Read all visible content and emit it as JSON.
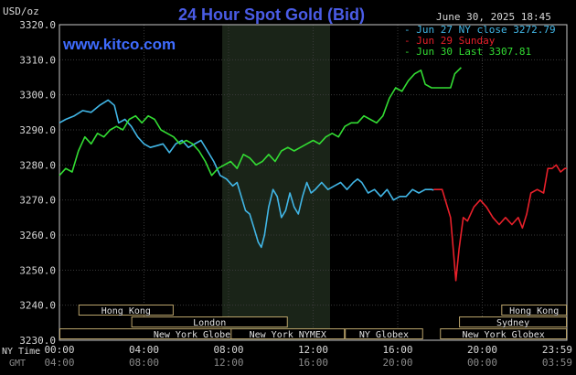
{
  "chart_data": {
    "type": "line",
    "title": "24 Hour Spot Gold (Bid)",
    "unit_label": "USD/oz",
    "timestamp": "June 30, 2025 18:45",
    "watermark": "www.kitco.com",
    "ylim": [
      3230,
      3320
    ],
    "y_ticks": [
      "3320.0",
      "3310.0",
      "3300.0",
      "3290.0",
      "3280.0",
      "3270.0",
      "3260.0",
      "3250.0",
      "3240.0",
      "3230.0"
    ],
    "x_range_hours": [
      0,
      24
    ],
    "x_ticks": [
      {
        "hour": 0,
        "ny": "00:00",
        "gmt": "04:00"
      },
      {
        "hour": 4,
        "ny": "04:00",
        "gmt": "08:00"
      },
      {
        "hour": 8,
        "ny": "08:00",
        "gmt": "12:00"
      },
      {
        "hour": 12,
        "ny": "12:00",
        "gmt": "16:00"
      },
      {
        "hour": 16,
        "ny": "16:00",
        "gmt": "20:00"
      },
      {
        "hour": 20,
        "ny": "20:00",
        "gmt": "00:00"
      },
      {
        "hour": 24,
        "ny": "23:59",
        "gmt": "03:59"
      }
    ],
    "x_axis_labels": {
      "ny": "NY Time",
      "gmt": "GMT"
    },
    "shaded_session_hours": [
      7.7,
      12.8
    ],
    "legend": [
      {
        "label": "Jun 27 NY close 3272.79",
        "color": "#41b6e6"
      },
      {
        "label": "Jun 29 Sunday",
        "color": "#e8202a"
      },
      {
        "label": "Jun 30 Last 3307.81",
        "color": "#33dd33"
      }
    ],
    "sessions": [
      {
        "label": "Hong Kong",
        "start": 0.9,
        "end": 5.4,
        "row": 0
      },
      {
        "label": "London",
        "start": 3.4,
        "end": 10.8,
        "row": 1
      },
      {
        "label": "New York Globex",
        "start": 0,
        "end": 12.8,
        "row": 2
      },
      {
        "label": "New York NYMEX",
        "start": 8.1,
        "end": 13.5,
        "row": 2
      },
      {
        "label": "NY Globex",
        "start": 13.5,
        "end": 17.2,
        "row": 2
      },
      {
        "label": "Hong Kong",
        "start": 20.9,
        "end": 24,
        "row": 0
      },
      {
        "label": "Sydney",
        "start": 18.9,
        "end": 24,
        "row": 1
      },
      {
        "label": "New York Globex",
        "start": 18.0,
        "end": 24,
        "row": 2
      }
    ],
    "series": [
      {
        "name": "Jun 27 NY close 3272.79",
        "color": "#41b6e6",
        "points": [
          [
            0,
            3292
          ],
          [
            0.3,
            3293
          ],
          [
            0.7,
            3294
          ],
          [
            1.1,
            3295.5
          ],
          [
            1.5,
            3295
          ],
          [
            1.9,
            3297
          ],
          [
            2.3,
            3298.5
          ],
          [
            2.6,
            3297
          ],
          [
            2.8,
            3292
          ],
          [
            3.1,
            3293
          ],
          [
            3.4,
            3291
          ],
          [
            3.7,
            3288
          ],
          [
            4.0,
            3286
          ],
          [
            4.3,
            3285
          ],
          [
            4.6,
            3285.5
          ],
          [
            4.9,
            3286
          ],
          [
            5.2,
            3283.5
          ],
          [
            5.5,
            3286
          ],
          [
            5.8,
            3287
          ],
          [
            6.1,
            3285
          ],
          [
            6.4,
            3286
          ],
          [
            6.7,
            3287
          ],
          [
            7.0,
            3284
          ],
          [
            7.3,
            3281
          ],
          [
            7.6,
            3277
          ],
          [
            7.9,
            3276
          ],
          [
            8.2,
            3274
          ],
          [
            8.4,
            3275
          ],
          [
            8.6,
            3271
          ],
          [
            8.8,
            3267
          ],
          [
            9.0,
            3266
          ],
          [
            9.2,
            3262
          ],
          [
            9.4,
            3258
          ],
          [
            9.55,
            3256.5
          ],
          [
            9.7,
            3260
          ],
          [
            9.9,
            3268
          ],
          [
            10.1,
            3273
          ],
          [
            10.3,
            3271
          ],
          [
            10.5,
            3265
          ],
          [
            10.7,
            3267
          ],
          [
            10.9,
            3272
          ],
          [
            11.1,
            3268
          ],
          [
            11.3,
            3266
          ],
          [
            11.5,
            3271
          ],
          [
            11.7,
            3275
          ],
          [
            11.9,
            3272
          ],
          [
            12.1,
            3273
          ],
          [
            12.4,
            3275
          ],
          [
            12.7,
            3273
          ],
          [
            13.0,
            3274
          ],
          [
            13.3,
            3275
          ],
          [
            13.6,
            3273
          ],
          [
            13.9,
            3275
          ],
          [
            14.1,
            3276
          ],
          [
            14.3,
            3275
          ],
          [
            14.6,
            3272
          ],
          [
            14.9,
            3273
          ],
          [
            15.2,
            3271
          ],
          [
            15.5,
            3273
          ],
          [
            15.8,
            3270
          ],
          [
            16.1,
            3271
          ],
          [
            16.4,
            3271
          ],
          [
            16.7,
            3273
          ],
          [
            17.0,
            3272
          ],
          [
            17.3,
            3273
          ],
          [
            17.6,
            3273
          ],
          [
            17.7,
            3272.8
          ]
        ]
      },
      {
        "name": "Jun 29 Sunday",
        "color": "#e8202a",
        "points": [
          [
            17.7,
            3273
          ],
          [
            18.1,
            3273
          ],
          [
            18.3,
            3269
          ],
          [
            18.5,
            3265
          ],
          [
            18.6,
            3258
          ],
          [
            18.75,
            3247
          ],
          [
            18.9,
            3256
          ],
          [
            19.1,
            3265
          ],
          [
            19.3,
            3264
          ],
          [
            19.6,
            3268
          ],
          [
            19.9,
            3270
          ],
          [
            20.2,
            3268
          ],
          [
            20.5,
            3265
          ],
          [
            20.8,
            3263
          ],
          [
            21.1,
            3265
          ],
          [
            21.4,
            3263
          ],
          [
            21.7,
            3265
          ],
          [
            21.9,
            3262
          ],
          [
            22.1,
            3266
          ],
          [
            22.3,
            3272
          ],
          [
            22.6,
            3273
          ],
          [
            22.9,
            3272
          ],
          [
            23.1,
            3279
          ],
          [
            23.3,
            3279
          ],
          [
            23.5,
            3280
          ],
          [
            23.7,
            3278
          ],
          [
            23.9,
            3279
          ],
          [
            24.0,
            3279
          ]
        ]
      },
      {
        "name": "Jun 30 Last 3307.81",
        "color": "#33dd33",
        "points": [
          [
            0,
            3277
          ],
          [
            0.3,
            3279
          ],
          [
            0.6,
            3278
          ],
          [
            0.9,
            3284
          ],
          [
            1.2,
            3288
          ],
          [
            1.5,
            3286
          ],
          [
            1.8,
            3289
          ],
          [
            2.1,
            3288
          ],
          [
            2.4,
            3290
          ],
          [
            2.7,
            3291
          ],
          [
            3.0,
            3290
          ],
          [
            3.3,
            3293
          ],
          [
            3.6,
            3294
          ],
          [
            3.9,
            3292
          ],
          [
            4.2,
            3294
          ],
          [
            4.5,
            3293
          ],
          [
            4.8,
            3290
          ],
          [
            5.1,
            3289
          ],
          [
            5.4,
            3288
          ],
          [
            5.7,
            3286
          ],
          [
            6.0,
            3287
          ],
          [
            6.3,
            3286
          ],
          [
            6.6,
            3284
          ],
          [
            6.9,
            3281
          ],
          [
            7.2,
            3277
          ],
          [
            7.5,
            3279
          ],
          [
            7.8,
            3280
          ],
          [
            8.1,
            3281
          ],
          [
            8.4,
            3279
          ],
          [
            8.7,
            3283
          ],
          [
            9.0,
            3282
          ],
          [
            9.3,
            3280
          ],
          [
            9.6,
            3281
          ],
          [
            9.9,
            3283
          ],
          [
            10.2,
            3281
          ],
          [
            10.5,
            3284
          ],
          [
            10.8,
            3285
          ],
          [
            11.1,
            3284
          ],
          [
            11.4,
            3285
          ],
          [
            11.7,
            3286
          ],
          [
            12.0,
            3287
          ],
          [
            12.3,
            3286
          ],
          [
            12.6,
            3288
          ],
          [
            12.9,
            3289
          ],
          [
            13.2,
            3288
          ],
          [
            13.5,
            3291
          ],
          [
            13.8,
            3292
          ],
          [
            14.1,
            3292
          ],
          [
            14.4,
            3294
          ],
          [
            14.7,
            3293
          ],
          [
            15.0,
            3292
          ],
          [
            15.3,
            3294
          ],
          [
            15.6,
            3299
          ],
          [
            15.9,
            3302
          ],
          [
            16.2,
            3301
          ],
          [
            16.5,
            3304
          ],
          [
            16.8,
            3306
          ],
          [
            17.1,
            3307
          ],
          [
            17.3,
            3303
          ],
          [
            17.6,
            3302
          ],
          [
            17.9,
            3302
          ],
          [
            18.2,
            3302
          ],
          [
            18.5,
            3302
          ],
          [
            18.7,
            3306
          ],
          [
            19.0,
            3307.8
          ]
        ]
      }
    ]
  }
}
